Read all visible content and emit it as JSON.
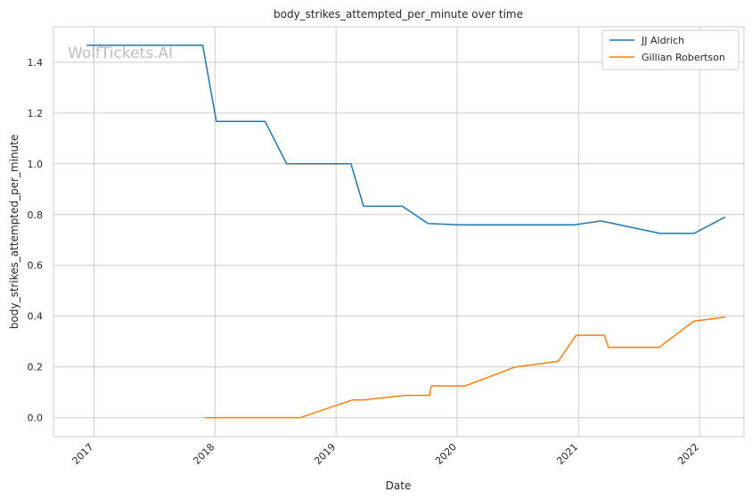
{
  "chart_data": {
    "type": "line",
    "title": "body_strikes_attempted_per_minute over time",
    "xlabel": "Date",
    "ylabel": "body_strikes_attempted_per_minute",
    "watermark": "WolfTickets.AI",
    "x_ticks": [
      "2017",
      "2018",
      "2019",
      "2020",
      "2021",
      "2022"
    ],
    "y_ticks": [
      "0.0",
      "0.2",
      "0.4",
      "0.6",
      "0.8",
      "1.0",
      "1.2",
      "1.4"
    ],
    "xlim": [
      "2016-09-01",
      "2022-05-15"
    ],
    "ylim": [
      -0.075,
      1.54
    ],
    "grid": true,
    "legend_position": "top-right",
    "series": [
      {
        "name": "JJ Aldrich",
        "color": "#1f77b4",
        "points": [
          [
            "2016-12-10",
            1.467
          ],
          [
            "2017-11-25",
            1.467
          ],
          [
            "2018-01-05",
            1.167
          ],
          [
            "2018-06-01",
            1.167
          ],
          [
            "2018-08-05",
            1.0
          ],
          [
            "2019-02-15",
            1.0
          ],
          [
            "2019-03-25",
            0.833
          ],
          [
            "2019-07-20",
            0.833
          ],
          [
            "2019-10-05",
            0.765
          ],
          [
            "2020-01-01",
            0.76
          ],
          [
            "2020-12-20",
            0.76
          ],
          [
            "2021-03-10",
            0.775
          ],
          [
            "2021-09-04",
            0.726
          ],
          [
            "2021-12-15",
            0.726
          ],
          [
            "2022-03-19",
            0.79
          ]
        ]
      },
      {
        "name": "Gillian Robertson",
        "color": "#ff7f0e",
        "points": [
          [
            "2017-12-01",
            0.0
          ],
          [
            "2018-01-01",
            0.0
          ],
          [
            "2018-09-15",
            0.0
          ],
          [
            "2019-02-20",
            0.07
          ],
          [
            "2019-03-25",
            0.07
          ],
          [
            "2019-07-27",
            0.088
          ],
          [
            "2019-10-10",
            0.088
          ],
          [
            "2019-10-15",
            0.125
          ],
          [
            "2020-01-25",
            0.125
          ],
          [
            "2020-06-25",
            0.2
          ],
          [
            "2020-11-01",
            0.222
          ],
          [
            "2020-12-25",
            0.325
          ],
          [
            "2021-03-20",
            0.325
          ],
          [
            "2021-04-01",
            0.277
          ],
          [
            "2021-09-01",
            0.277
          ],
          [
            "2021-12-15",
            0.38
          ],
          [
            "2022-03-19",
            0.396
          ]
        ]
      }
    ]
  }
}
